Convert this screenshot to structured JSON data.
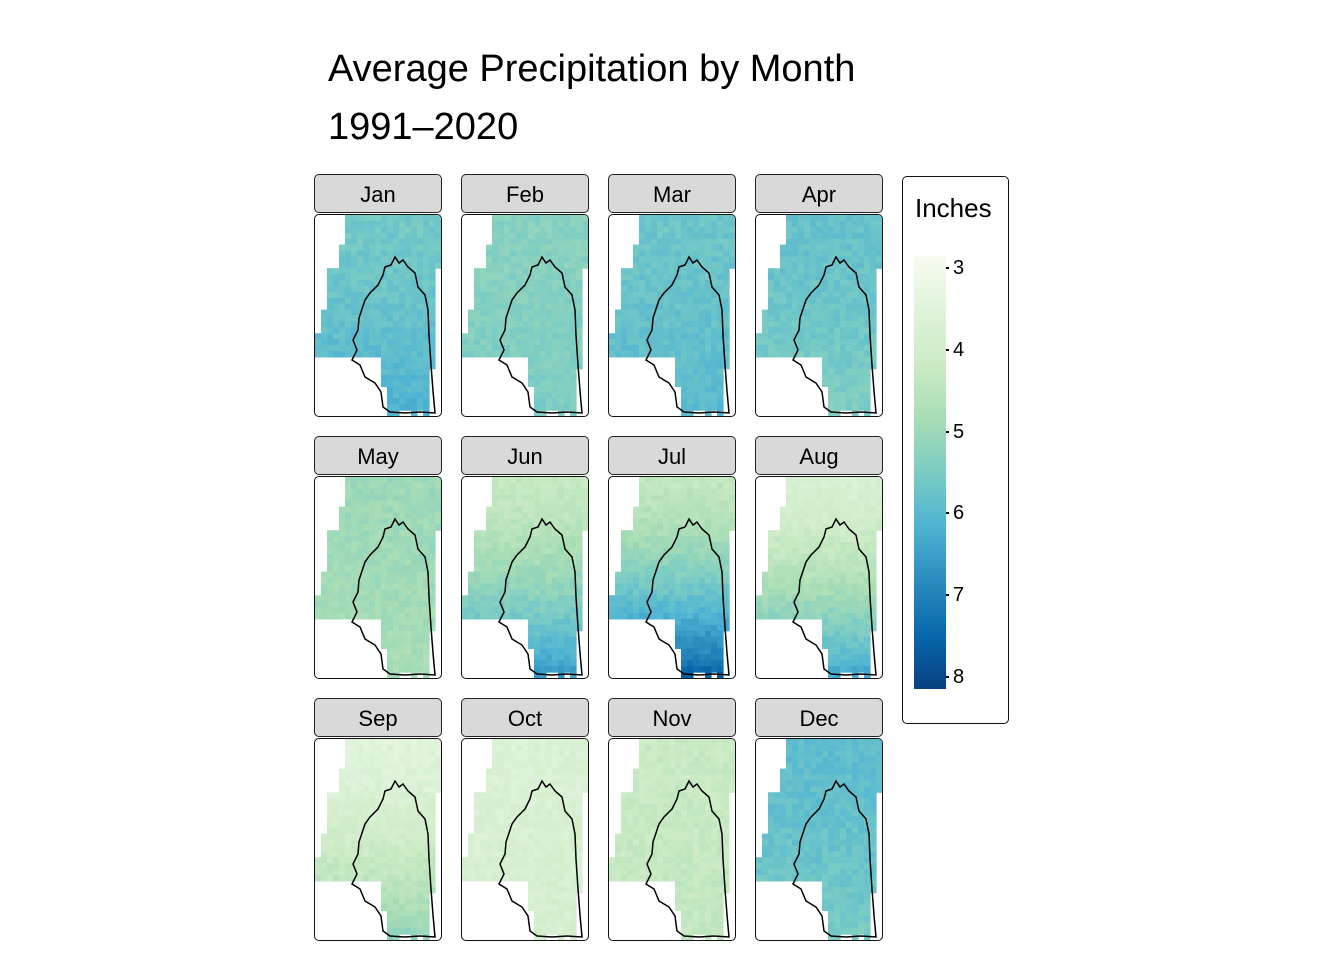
{
  "chart_data": {
    "type": "heatmap",
    "title": "Average Precipitation by Month",
    "subtitle": "1991–2020",
    "facets": [
      {
        "label": "Jan",
        "mean": 5.6,
        "south": 6.2
      },
      {
        "label": "Feb",
        "mean": 5.3,
        "south": 5.5
      },
      {
        "label": "Mar",
        "mean": 5.7,
        "south": 6.0
      },
      {
        "label": "Apr",
        "mean": 5.8,
        "south": 5.4
      },
      {
        "label": "May",
        "mean": 5.0,
        "south": 4.8
      },
      {
        "label": "Jun",
        "mean": 4.3,
        "south": 6.6
      },
      {
        "label": "Jul",
        "mean": 4.4,
        "south": 7.6
      },
      {
        "label": "Aug",
        "mean": 3.8,
        "south": 6.4
      },
      {
        "label": "Sep",
        "mean": 3.5,
        "south": 5.2
      },
      {
        "label": "Oct",
        "mean": 3.7,
        "south": 3.9
      },
      {
        "label": "Nov",
        "mean": 4.2,
        "south": 4.4
      },
      {
        "label": "Dec",
        "mean": 5.9,
        "south": 5.5
      }
    ],
    "legend": {
      "title": "Inches",
      "ticks": [
        "3",
        "4",
        "5",
        "6",
        "7",
        "8"
      ],
      "range": [
        2.85,
        8.15
      ],
      "colors": [
        "#f7fcf0",
        "#e0f3db",
        "#ccebc5",
        "#a8ddb5",
        "#7bccc4",
        "#4eb3d3",
        "#2b8cbe",
        "#0868ac",
        "#084081"
      ]
    }
  }
}
